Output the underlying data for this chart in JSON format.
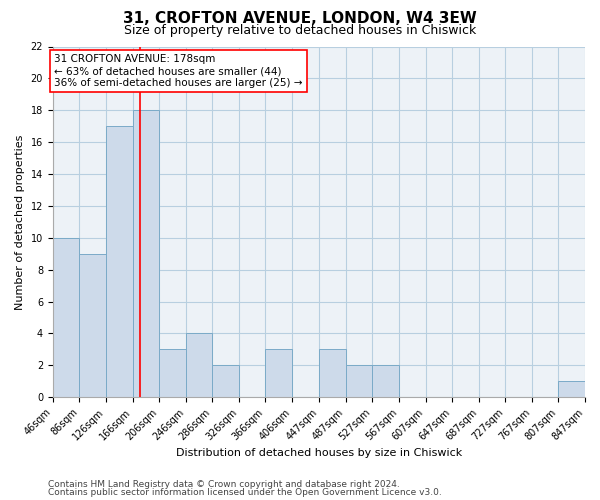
{
  "title": "31, CROFTON AVENUE, LONDON, W4 3EW",
  "subtitle": "Size of property relative to detached houses in Chiswick",
  "xlabel": "Distribution of detached houses by size in Chiswick",
  "ylabel": "Number of detached properties",
  "bin_edges": [
    46,
    86,
    126,
    166,
    206,
    246,
    286,
    326,
    366,
    406,
    447,
    487,
    527,
    567,
    607,
    647,
    687,
    727,
    767,
    807,
    847
  ],
  "counts": [
    10,
    9,
    17,
    18,
    3,
    4,
    2,
    0,
    3,
    0,
    3,
    2,
    2,
    0,
    0,
    0,
    0,
    0,
    0,
    1
  ],
  "bar_color": "#cddaea",
  "bar_edge_color": "#7aaac8",
  "vline_x": 178,
  "vline_color": "red",
  "annotation_text": "31 CROFTON AVENUE: 178sqm\n← 63% of detached houses are smaller (44)\n36% of semi-detached houses are larger (25) →",
  "annotation_box_color": "white",
  "annotation_box_edgecolor": "red",
  "ylim": [
    0,
    22
  ],
  "yticks": [
    0,
    2,
    4,
    6,
    8,
    10,
    12,
    14,
    16,
    18,
    20,
    22
  ],
  "tick_labels": [
    "46sqm",
    "86sqm",
    "126sqm",
    "166sqm",
    "206sqm",
    "246sqm",
    "286sqm",
    "326sqm",
    "366sqm",
    "406sqm",
    "447sqm",
    "487sqm",
    "527sqm",
    "567sqm",
    "607sqm",
    "647sqm",
    "687sqm",
    "727sqm",
    "767sqm",
    "807sqm",
    "847sqm"
  ],
  "footer1": "Contains HM Land Registry data © Crown copyright and database right 2024.",
  "footer2": "Contains public sector information licensed under the Open Government Licence v3.0.",
  "bg_color": "#edf2f7",
  "grid_color": "#b8cfe0",
  "title_fontsize": 11,
  "subtitle_fontsize": 9,
  "label_fontsize": 8,
  "tick_fontsize": 7,
  "footer_fontsize": 6.5,
  "annotation_fontsize": 7.5
}
